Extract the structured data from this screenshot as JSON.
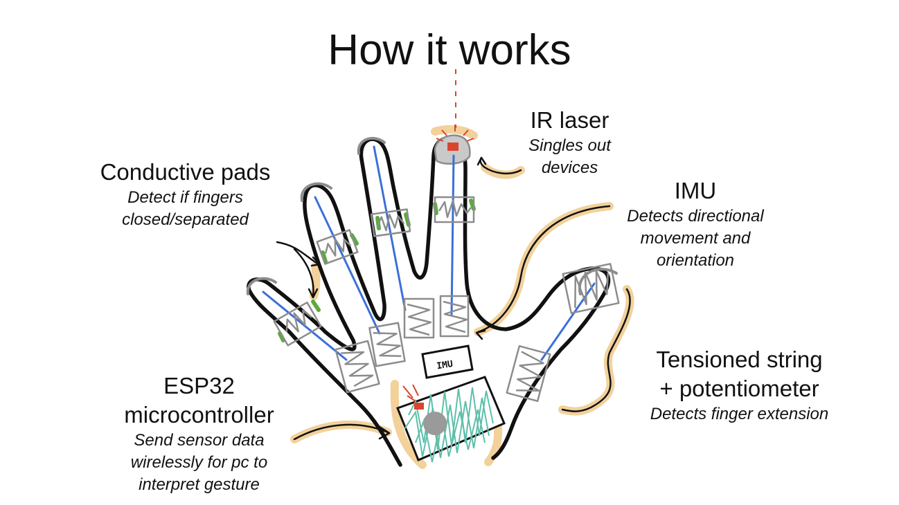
{
  "title": "How it works",
  "labels": {
    "conductive_pads": {
      "heading": "Conductive pads",
      "desc_lines": [
        "Detect if fingers",
        "closed/separated"
      ]
    },
    "ir_laser": {
      "heading": "IR laser",
      "desc_lines": [
        "Singles out",
        "devices"
      ]
    },
    "imu": {
      "heading": "IMU",
      "desc_lines": [
        "Detects directional",
        "movement and",
        "orientation"
      ]
    },
    "tensioned_string": {
      "heading_lines": [
        "Tensioned string",
        "+ potentiometer"
      ],
      "desc_lines": [
        "Detects finger extension"
      ]
    },
    "esp32": {
      "heading_lines": [
        "ESP32",
        "microcontroller"
      ],
      "desc_lines": [
        "Send sensor data",
        "wirelessly for pc to",
        "interpret gesture"
      ]
    }
  },
  "sketch": {
    "imu_chip_text": "IMU"
  },
  "colors": {
    "outline": "#111111",
    "highlight": "#f0c98a",
    "sensor": "#8c8c8c",
    "wire": "#3b6fd8",
    "pad": "#5aab3c",
    "board": "#5dbfaa",
    "laser": "#d9452f"
  }
}
